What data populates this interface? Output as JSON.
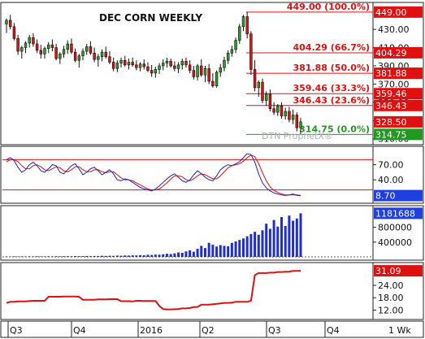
{
  "chart_data": {
    "type": "candlestick",
    "title": "DEC CORN WEEKLY",
    "watermark": "DTN ProphetX®",
    "colors": {
      "up": "#2a9d2a",
      "down": "#e01010",
      "fib_line": "#e01010",
      "stoch_k": "#2020c0",
      "stoch_d": "#e01010",
      "volume": "#1f2fcc",
      "oi_line": "#e01010",
      "last_label": "#1f3fe0"
    },
    "x_axis": {
      "tick_labels": [
        "Q3",
        "Q4",
        "2016",
        "Q2",
        "Q3",
        "Q4",
        "1 Wk"
      ]
    },
    "price_panel": {
      "y_ticks": [
        430,
        410,
        390,
        370,
        350,
        330,
        310
      ],
      "y_tick_labels": [
        "430.00",
        "410.00",
        "390.00",
        "370.00",
        "350.00",
        "330.00",
        "310.00"
      ],
      "ylim": [
        307,
        456
      ],
      "fib_levels": [
        {
          "price": 449.0,
          "label": "449.00 (100.0%)",
          "badge": "449.00"
        },
        {
          "price": 404.29,
          "label": "404.29 (66.7%)",
          "badge": "404.29"
        },
        {
          "price": 381.88,
          "label": "381.88 (50.0%)",
          "badge": "381.88"
        },
        {
          "price": 359.46,
          "label": "359.46 (33.3%)",
          "badge": "359.46"
        },
        {
          "price": 346.43,
          "label": "346.43 (23.6%)",
          "badge": "346.43"
        },
        {
          "price": 314.75,
          "label": "314.75 (0.0%)",
          "badge": "314.75"
        }
      ],
      "last_price_badge": "328.50",
      "last_price": 328.5,
      "candles": [
        [
          436,
          442,
          426,
          440
        ],
        [
          440,
          446,
          430,
          433
        ],
        [
          433,
          437,
          418,
          420
        ],
        [
          420,
          424,
          402,
          406
        ],
        [
          406,
          412,
          398,
          410
        ],
        [
          410,
          417,
          404,
          415
        ],
        [
          415,
          424,
          410,
          421
        ],
        [
          421,
          426,
          411,
          414
        ],
        [
          414,
          419,
          404,
          407
        ],
        [
          407,
          413,
          398,
          403
        ],
        [
          403,
          411,
          398,
          409
        ],
        [
          409,
          416,
          404,
          413
        ],
        [
          413,
          419,
          406,
          410
        ],
        [
          410,
          414,
          396,
          398
        ],
        [
          398,
          405,
          392,
          403
        ],
        [
          403,
          412,
          399,
          408
        ],
        [
          408,
          418,
          403,
          414
        ],
        [
          414,
          420,
          403,
          405
        ],
        [
          405,
          409,
          394,
          396
        ],
        [
          396,
          403,
          388,
          401
        ],
        [
          401,
          409,
          396,
          406
        ],
        [
          406,
          414,
          402,
          411
        ],
        [
          411,
          417,
          402,
          404
        ],
        [
          404,
          410,
          394,
          397
        ],
        [
          397,
          403,
          389,
          400
        ],
        [
          400,
          408,
          395,
          405
        ],
        [
          405,
          411,
          398,
          400
        ],
        [
          400,
          406,
          392,
          394
        ],
        [
          394,
          399,
          384,
          387
        ],
        [
          387,
          396,
          383,
          393
        ],
        [
          393,
          399,
          388,
          396
        ],
        [
          396,
          401,
          389,
          391
        ],
        [
          391,
          398,
          386,
          394
        ],
        [
          394,
          399,
          389,
          391
        ],
        [
          391,
          396,
          385,
          388
        ],
        [
          388,
          394,
          384,
          392
        ],
        [
          392,
          397,
          386,
          389
        ],
        [
          389,
          394,
          383,
          385
        ],
        [
          385,
          391,
          378,
          382
        ],
        [
          382,
          389,
          377,
          386
        ],
        [
          386,
          393,
          381,
          390
        ],
        [
          390,
          397,
          385,
          393
        ],
        [
          393,
          399,
          388,
          395
        ],
        [
          395,
          398,
          388,
          390
        ],
        [
          390,
          395,
          384,
          387
        ],
        [
          387,
          394,
          382,
          391
        ],
        [
          391,
          398,
          386,
          395
        ],
        [
          395,
          399,
          388,
          391
        ],
        [
          391,
          396,
          382,
          385
        ],
        [
          385,
          390,
          375,
          378
        ],
        [
          378,
          392,
          374,
          390
        ],
        [
          390,
          397,
          378,
          380
        ],
        [
          380,
          390,
          372,
          387
        ],
        [
          387,
          392,
          370,
          373
        ],
        [
          373,
          382,
          366,
          368
        ],
        [
          368,
          385,
          366,
          383
        ],
        [
          383,
          392,
          378,
          388
        ],
        [
          388,
          400,
          384,
          396
        ],
        [
          396,
          407,
          392,
          404
        ],
        [
          404,
          412,
          400,
          408
        ],
        [
          408,
          421,
          404,
          418
        ],
        [
          418,
          436,
          414,
          433
        ],
        [
          433,
          446,
          428,
          444
        ],
        [
          444,
          449,
          420,
          425
        ],
        [
          425,
          428,
          380,
          386
        ],
        [
          386,
          396,
          362,
          366
        ],
        [
          366,
          374,
          356,
          372
        ],
        [
          372,
          376,
          349,
          352
        ],
        [
          352,
          362,
          346,
          359
        ],
        [
          359,
          364,
          340,
          343
        ],
        [
          343,
          350,
          336,
          339
        ],
        [
          339,
          348,
          335,
          346
        ],
        [
          346,
          350,
          332,
          335
        ],
        [
          335,
          344,
          331,
          340
        ],
        [
          340,
          345,
          328,
          331
        ],
        [
          331,
          342,
          326,
          336
        ],
        [
          336,
          339,
          318,
          322
        ],
        [
          322,
          333,
          314.75,
          328.5
        ]
      ]
    },
    "stoch_panel": {
      "y_ticks": [
        70,
        40
      ],
      "y_tick_labels": [
        "70.00",
        "40.00"
      ],
      "ylim": [
        0,
        100
      ],
      "ref_levels": [
        80,
        20
      ],
      "last_label": "8.70",
      "k": [
        80,
        84,
        78,
        65,
        55,
        60,
        70,
        75,
        68,
        58,
        55,
        62,
        70,
        68,
        55,
        52,
        60,
        68,
        72,
        62,
        50,
        55,
        62,
        65,
        58,
        50,
        55,
        60,
        52,
        40,
        38,
        42,
        40,
        35,
        30,
        25,
        22,
        20,
        18,
        22,
        28,
        35,
        42,
        48,
        52,
        45,
        38,
        35,
        40,
        50,
        58,
        52,
        45,
        40,
        38,
        48,
        60,
        66,
        70,
        68,
        72,
        76,
        84,
        92,
        90,
        75,
        52,
        34,
        24,
        18,
        14,
        12,
        10,
        9,
        10,
        12,
        9,
        8.7
      ],
      "d": [
        76,
        80,
        80,
        76,
        68,
        62,
        62,
        68,
        70,
        66,
        60,
        58,
        62,
        66,
        64,
        58,
        56,
        60,
        66,
        66,
        60,
        56,
        56,
        60,
        60,
        56,
        54,
        56,
        56,
        50,
        44,
        40,
        40,
        38,
        34,
        30,
        26,
        22,
        20,
        20,
        22,
        28,
        34,
        42,
        48,
        48,
        46,
        40,
        38,
        42,
        48,
        52,
        50,
        46,
        42,
        42,
        48,
        56,
        64,
        68,
        70,
        72,
        77,
        84,
        89,
        86,
        72,
        54,
        38,
        26,
        19,
        15,
        12,
        10,
        10,
        10,
        10,
        9.4
      ]
    },
    "volume_panel": {
      "y_ticks": [
        800000,
        400000
      ],
      "y_tick_labels": [
        "800000",
        "400000"
      ],
      "ylim": [
        0,
        1300000
      ],
      "last_label": "1181688",
      "values": [
        12000,
        10000,
        14000,
        11000,
        13000,
        12000,
        15000,
        14000,
        16000,
        13000,
        15000,
        17000,
        14000,
        18000,
        16000,
        17000,
        20000,
        18000,
        22000,
        19000,
        21000,
        24000,
        20000,
        25000,
        22000,
        28000,
        26000,
        30000,
        28000,
        34000,
        30000,
        38000,
        36000,
        42000,
        40000,
        48000,
        45000,
        56000,
        52000,
        62000,
        60000,
        72000,
        85000,
        78000,
        96000,
        120000,
        110000,
        150000,
        180000,
        140000,
        220000,
        300000,
        240000,
        380000,
        330000,
        280000,
        320000,
        300000,
        290000,
        380000,
        420000,
        460000,
        500000,
        560000,
        620000,
        680000,
        600000,
        720000,
        900000,
        760000,
        1000000,
        820000,
        1080000,
        840000,
        1120000,
        980000,
        1040000,
        1181688
      ]
    },
    "oi_panel": {
      "y_ticks": [
        24,
        18,
        12
      ],
      "y_tick_labels": [
        "24.00",
        "18.00",
        "12.00"
      ],
      "ylim": [
        9,
        33.5
      ],
      "last_label": "31.09",
      "values": [
        15.5,
        16,
        16,
        16.2,
        16.2,
        16.2,
        16.4,
        16.5,
        16.5,
        16.5,
        16.5,
        18.5,
        18.5,
        18.5,
        18.5,
        18.6,
        18.6,
        18.6,
        18.6,
        18.5,
        17,
        17,
        17,
        17,
        17.2,
        17.2,
        17.2,
        17.3,
        17.3,
        17.3,
        16.3,
        16.3,
        16.3,
        16.2,
        16.5,
        16.5,
        16.4,
        16.4,
        16.4,
        16.4,
        14,
        12.5,
        12.3,
        12.3,
        12.4,
        12.5,
        12.8,
        12.8,
        13,
        13.5,
        13.5,
        14.6,
        14.6,
        14.6,
        14.8,
        15,
        15.2,
        15.5,
        15.5,
        15.6,
        16,
        16,
        16,
        16,
        16.5,
        29,
        30,
        30,
        30,
        30.2,
        30.2,
        30.5,
        30.5,
        30.6,
        30.7,
        31,
        31,
        31.09
      ]
    }
  }
}
